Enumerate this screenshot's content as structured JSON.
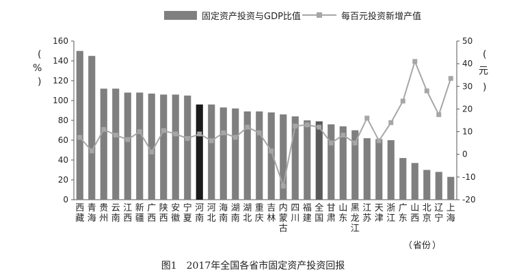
{
  "caption": "图1　2017年全国各省市固定资产投资回报",
  "chart_data": {
    "type": "bar",
    "title": "",
    "legend": [
      "固定资产投资与GDP比值",
      "每百元投资新增产值"
    ],
    "legend_position": "top-center",
    "ylabel_left": "%",
    "ylabel_right": "元",
    "xlabel": "省份",
    "ylim_left": [
      0,
      160
    ],
    "yticks_left": [
      0,
      20,
      40,
      60,
      80,
      100,
      120,
      140,
      160
    ],
    "ylim_right": [
      -20,
      50
    ],
    "yticks_right": [
      -20,
      -10,
      0,
      10,
      20,
      30,
      40,
      50
    ],
    "grid": false,
    "categories": [
      "西藏",
      "青海",
      "贵州",
      "云南",
      "江西",
      "新疆",
      "广西",
      "陕西",
      "安徽",
      "宁夏",
      "河南",
      "河北",
      "海南",
      "湖南",
      "湖北",
      "重庆",
      "吉林",
      "内蒙古",
      "四川",
      "福建",
      "全国",
      "甘肃",
      "山东",
      "黑龙江",
      "江苏",
      "天津",
      "浙江",
      "广东",
      "山西",
      "北京",
      "辽宁",
      "上海"
    ],
    "series": [
      {
        "name": "固定资产投资与GDP比值",
        "kind": "bar",
        "axis": "left",
        "color": "#7f7f7f",
        "highlight": {
          "河南": "#1a1a1a",
          "全国": "#595959"
        },
        "values": [
          150,
          145,
          112,
          112,
          108,
          108,
          107,
          106,
          106,
          105,
          96,
          96,
          93,
          92,
          89,
          89,
          88,
          86,
          84,
          80,
          79,
          76,
          74,
          70,
          62,
          61,
          60,
          42,
          37,
          30,
          28,
          23
        ]
      },
      {
        "name": "每百元投资新增产值",
        "kind": "line",
        "axis": "right",
        "color": "#a6a6a6",
        "values": [
          7.5,
          1.5,
          11,
          8.5,
          6.5,
          10,
          1,
          10.5,
          9,
          7,
          9,
          6,
          9.5,
          7.5,
          12,
          9.5,
          1.5,
          -14,
          12.5,
          13,
          12,
          5,
          8.5,
          5,
          16,
          6,
          14,
          23.5,
          41,
          28,
          17.5,
          33.5
        ]
      }
    ]
  }
}
